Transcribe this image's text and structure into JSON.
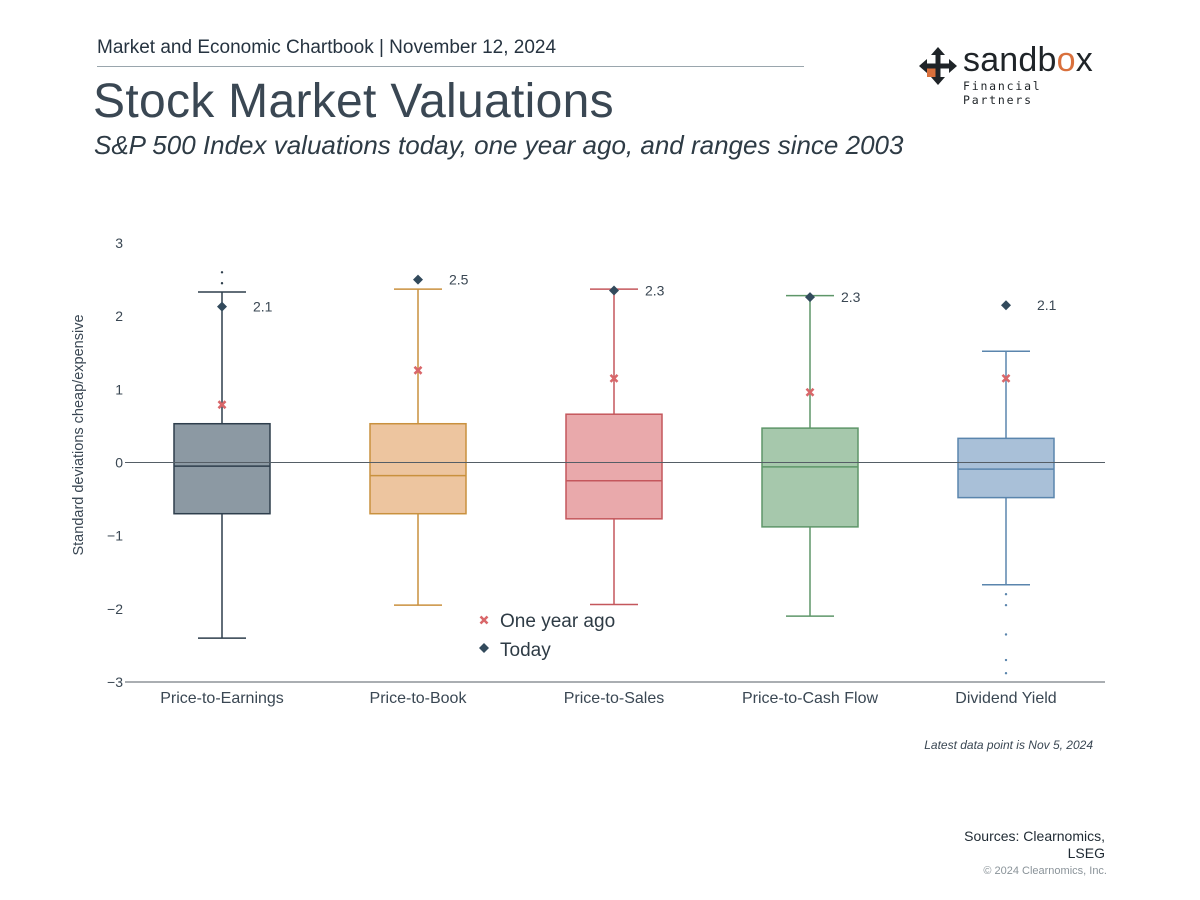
{
  "header": {
    "chartbook": "Market and Economic Chartbook | November 12, 2024",
    "title": "Stock Market Valuations",
    "subtitle": "S&P 500 Index valuations today, one year ago, and ranges since 2003"
  },
  "logo": {
    "word_prefix": "sandb",
    "word_o": "o",
    "word_suffix": "x",
    "tagline": "Financial Partners",
    "accent": "#d9703c"
  },
  "chart_data": {
    "type": "box",
    "ylabel": "Standard deviations cheap/expensive",
    "ylim": [
      -3,
      3
    ],
    "yticks": [
      {
        "value": 3,
        "label": "3"
      },
      {
        "value": 2,
        "label": "2"
      },
      {
        "value": 1,
        "label": "1"
      },
      {
        "value": 0,
        "label": "0"
      },
      {
        "value": -1,
        "label": "−1"
      },
      {
        "value": -2,
        "label": "−2"
      },
      {
        "value": -3,
        "label": "−3"
      }
    ],
    "legend": {
      "position": "bottom-center",
      "one_year_ago": "One year ago",
      "today": "Today"
    },
    "categories": [
      {
        "name": "Price-to-Earnings",
        "q1": -0.7,
        "median": -0.05,
        "q3": 0.53,
        "whisker_low": -2.4,
        "whisker_high": 2.33,
        "today": 2.13,
        "today_label": "2.1",
        "one_year_ago": 0.79,
        "outliers": [
          2.45,
          2.6
        ],
        "fill": "#8c99a3",
        "stroke": "#2e3e4c"
      },
      {
        "name": "Price-to-Book",
        "q1": -0.7,
        "median": -0.18,
        "q3": 0.53,
        "whisker_low": -1.95,
        "whisker_high": 2.37,
        "today": 2.5,
        "today_label": "2.5",
        "one_year_ago": 1.26,
        "outliers": [],
        "fill": "#edc59f",
        "stroke": "#c9913e"
      },
      {
        "name": "Price-to-Sales",
        "q1": -0.77,
        "median": -0.25,
        "q3": 0.66,
        "whisker_low": -1.94,
        "whisker_high": 2.37,
        "today": 2.35,
        "today_label": "2.3",
        "one_year_ago": 1.15,
        "outliers": [],
        "fill": "#e9a9ab",
        "stroke": "#c4575c"
      },
      {
        "name": "Price-to-Cash Flow",
        "q1": -0.88,
        "median": -0.06,
        "q3": 0.47,
        "whisker_low": -2.1,
        "whisker_high": 2.28,
        "today": 2.26,
        "today_label": "2.3",
        "one_year_ago": 0.96,
        "outliers": [],
        "fill": "#a6c8ac",
        "stroke": "#5e9669"
      },
      {
        "name": "Dividend Yield",
        "q1": -0.48,
        "median": -0.09,
        "q3": 0.33,
        "whisker_low": -1.67,
        "whisker_high": 1.52,
        "today": 2.15,
        "today_label": "2.1",
        "one_year_ago": 1.15,
        "outliers": [
          -1.8,
          -1.95,
          -2.35,
          -2.7,
          -2.88
        ],
        "fill": "#a9c0d8",
        "stroke": "#5a85ad"
      }
    ],
    "today_color": "#324a5c",
    "one_year_ago_color": "#d9676a"
  },
  "footer": {
    "note": "Latest data point is Nov 5, 2024",
    "sources_line1": "Sources: Clearnomics,",
    "sources_line2": "LSEG",
    "copyright": "© 2024 Clearnomics, Inc."
  }
}
